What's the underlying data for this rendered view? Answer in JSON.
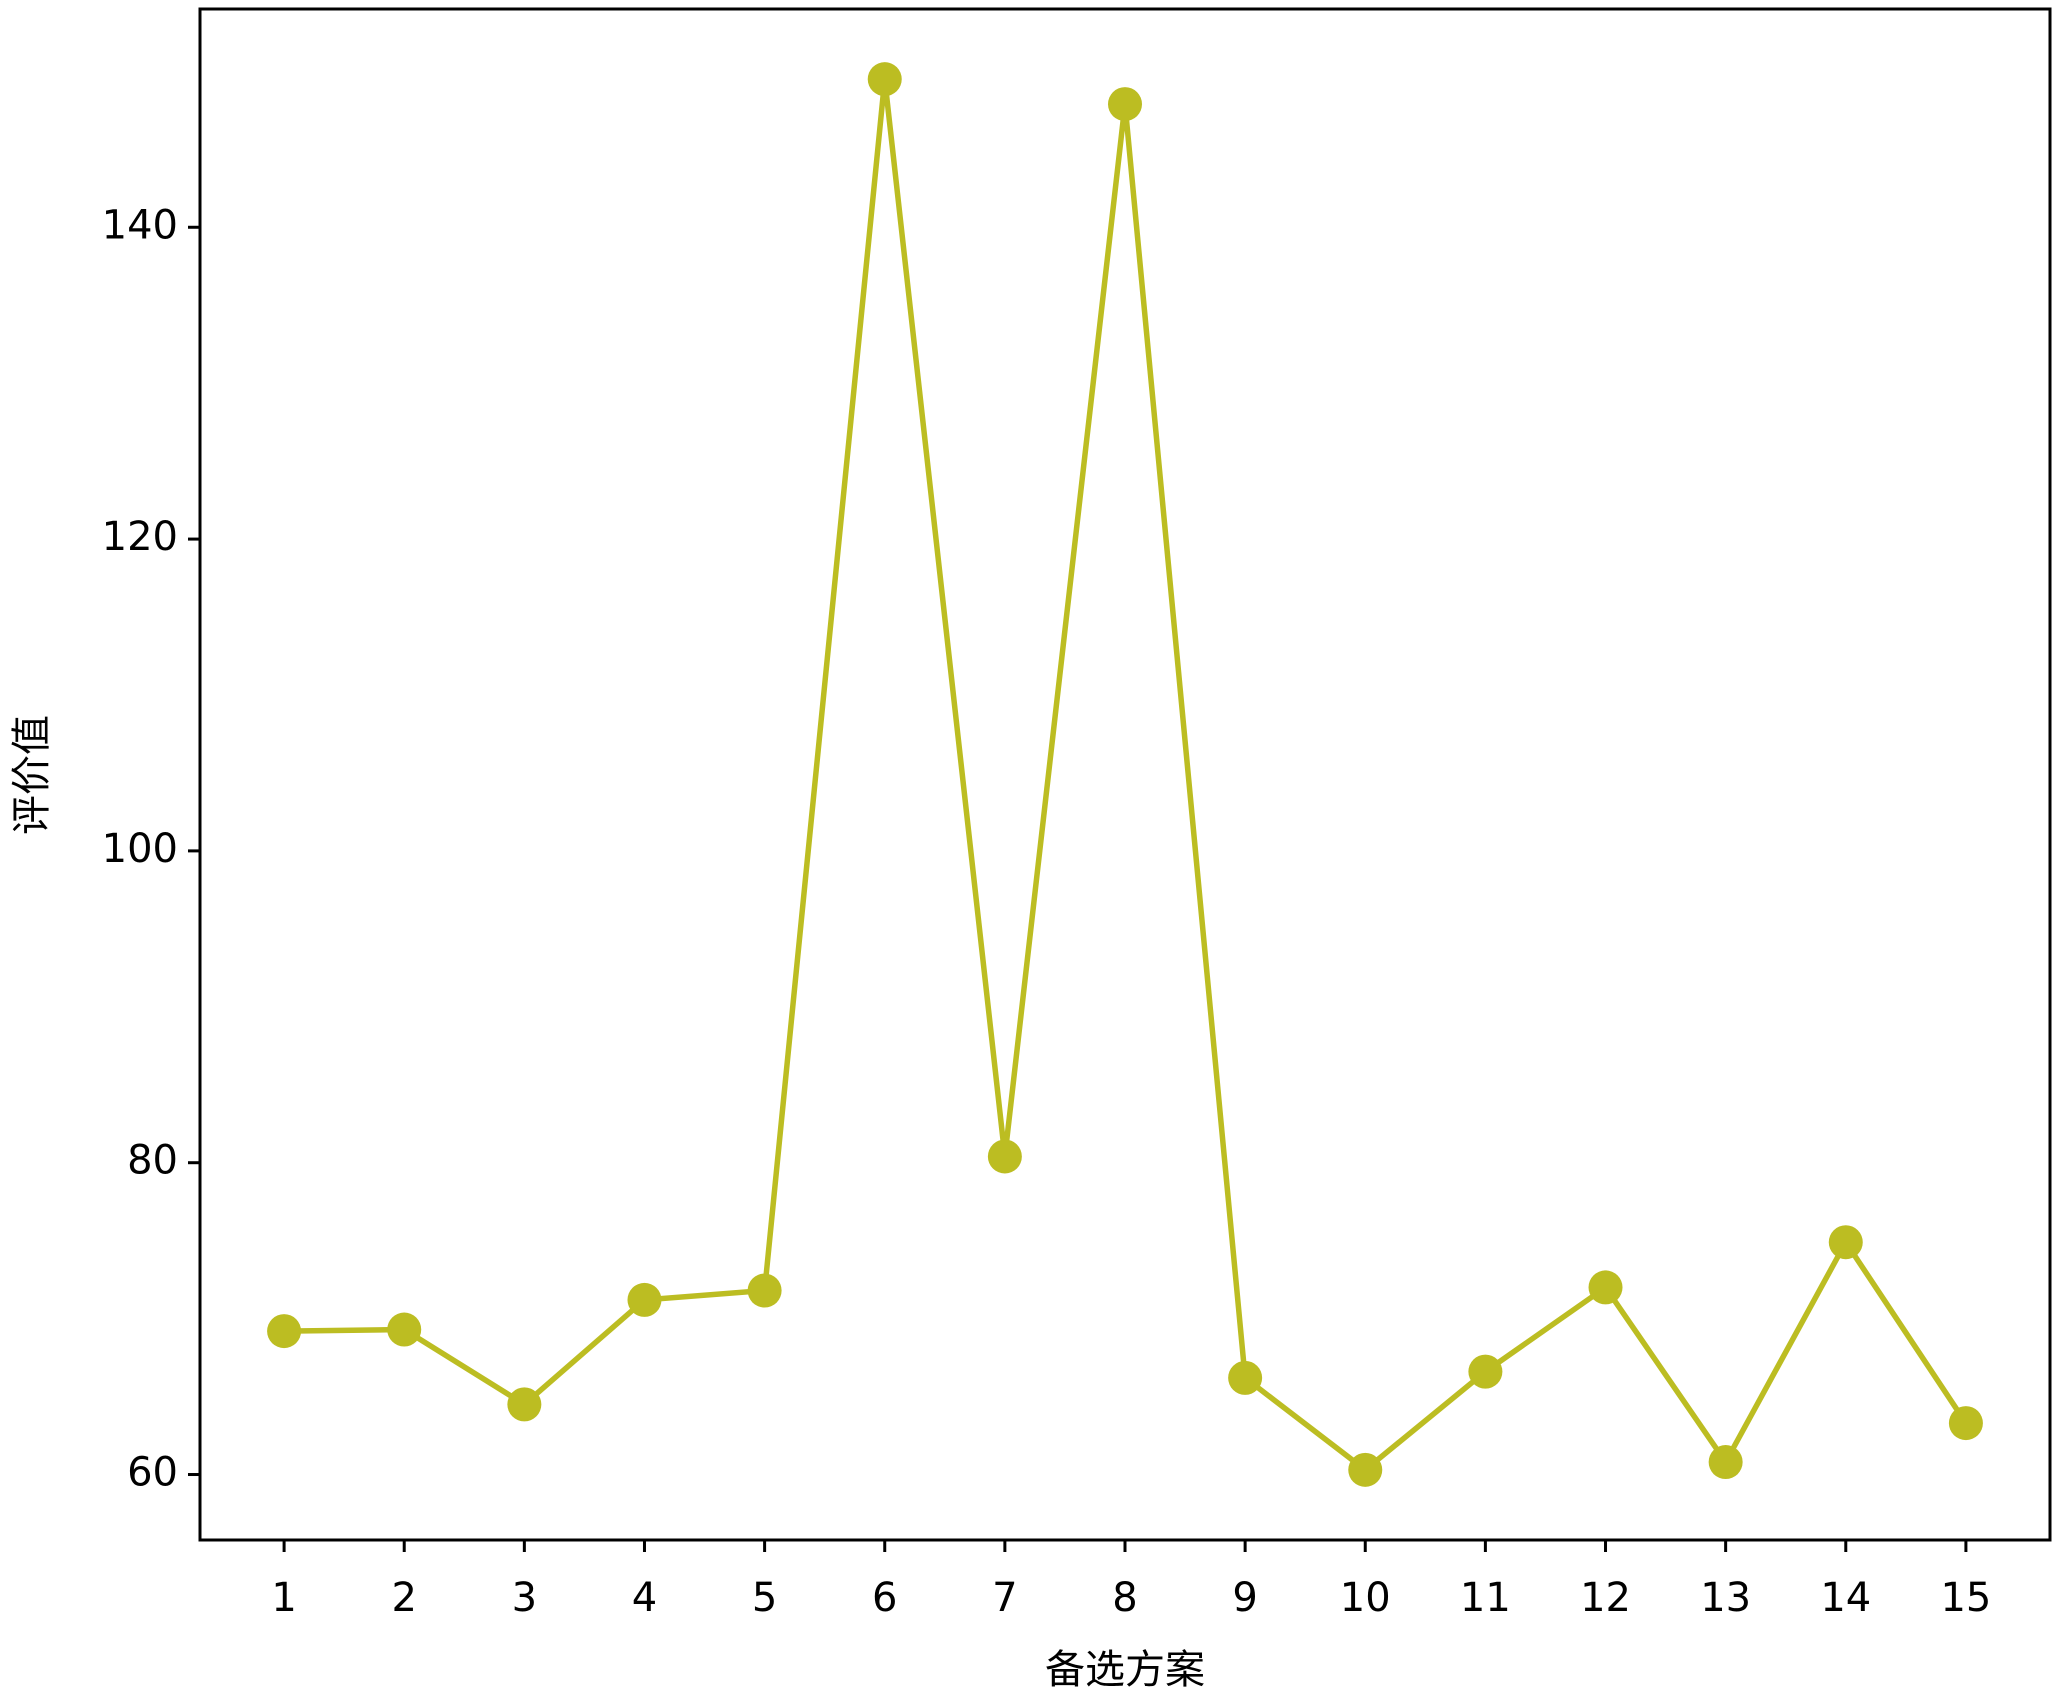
{
  "chart_data": {
    "type": "line",
    "x": [
      1,
      2,
      3,
      4,
      5,
      6,
      7,
      8,
      9,
      10,
      11,
      12,
      13,
      14,
      15
    ],
    "series": [
      {
        "color": "#bcbd22",
        "values": [
          69.2,
          69.3,
          64.5,
          71.2,
          71.8,
          149.5,
          80.4,
          147.9,
          66.2,
          60.3,
          66.6,
          72.0,
          60.8,
          74.9,
          63.3
        ]
      }
    ],
    "xlabel": "备选方案",
    "ylabel": "评价值",
    "xlim": [
      0.3,
      15.7
    ],
    "ylim": [
      55.8,
      154.0
    ],
    "xticks": [
      1,
      2,
      3,
      4,
      5,
      6,
      7,
      8,
      9,
      10,
      11,
      12,
      13,
      14,
      15
    ],
    "yticks": [
      60,
      80,
      100,
      120,
      140
    ],
    "grid": false
  }
}
